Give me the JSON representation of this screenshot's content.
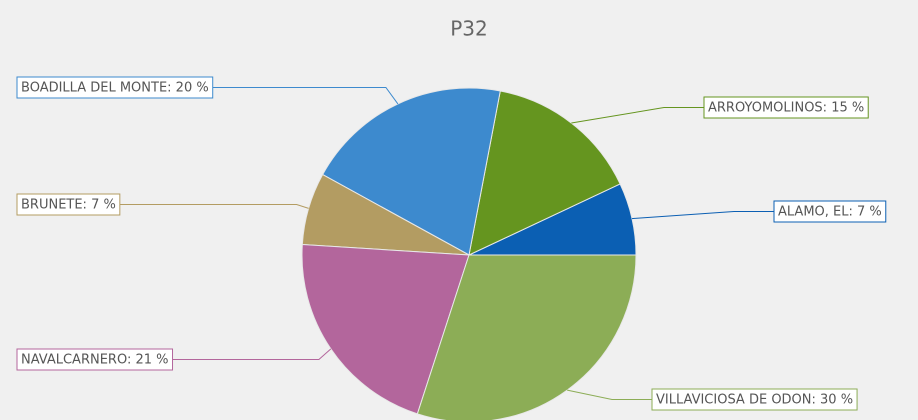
{
  "chart_data": {
    "type": "pie",
    "title": "P32",
    "categories": [
      "ALAMO, EL",
      "ARROYOMOLINOS",
      "BOADILLA DEL MONTE",
      "BRUNETE",
      "NAVALCARNERO",
      "VILLAVICIOSA DE ODON"
    ],
    "values": [
      7,
      15,
      20,
      7,
      21,
      30
    ],
    "value_labels": [
      "ALAMO, EL: 7 %",
      "ARROYOMOLINOS: 15 %",
      "BOADILLA DEL MONTE: 20 %",
      "BRUNETE: 7 %",
      "NAVALCARNERO: 21 %",
      "VILLAVICIOSA DE ODON: 30 %"
    ],
    "colors": [
      "#0b5fb3",
      "#65951f",
      "#3d8ace",
      "#b39c62",
      "#b3669c",
      "#8cad56"
    ]
  }
}
